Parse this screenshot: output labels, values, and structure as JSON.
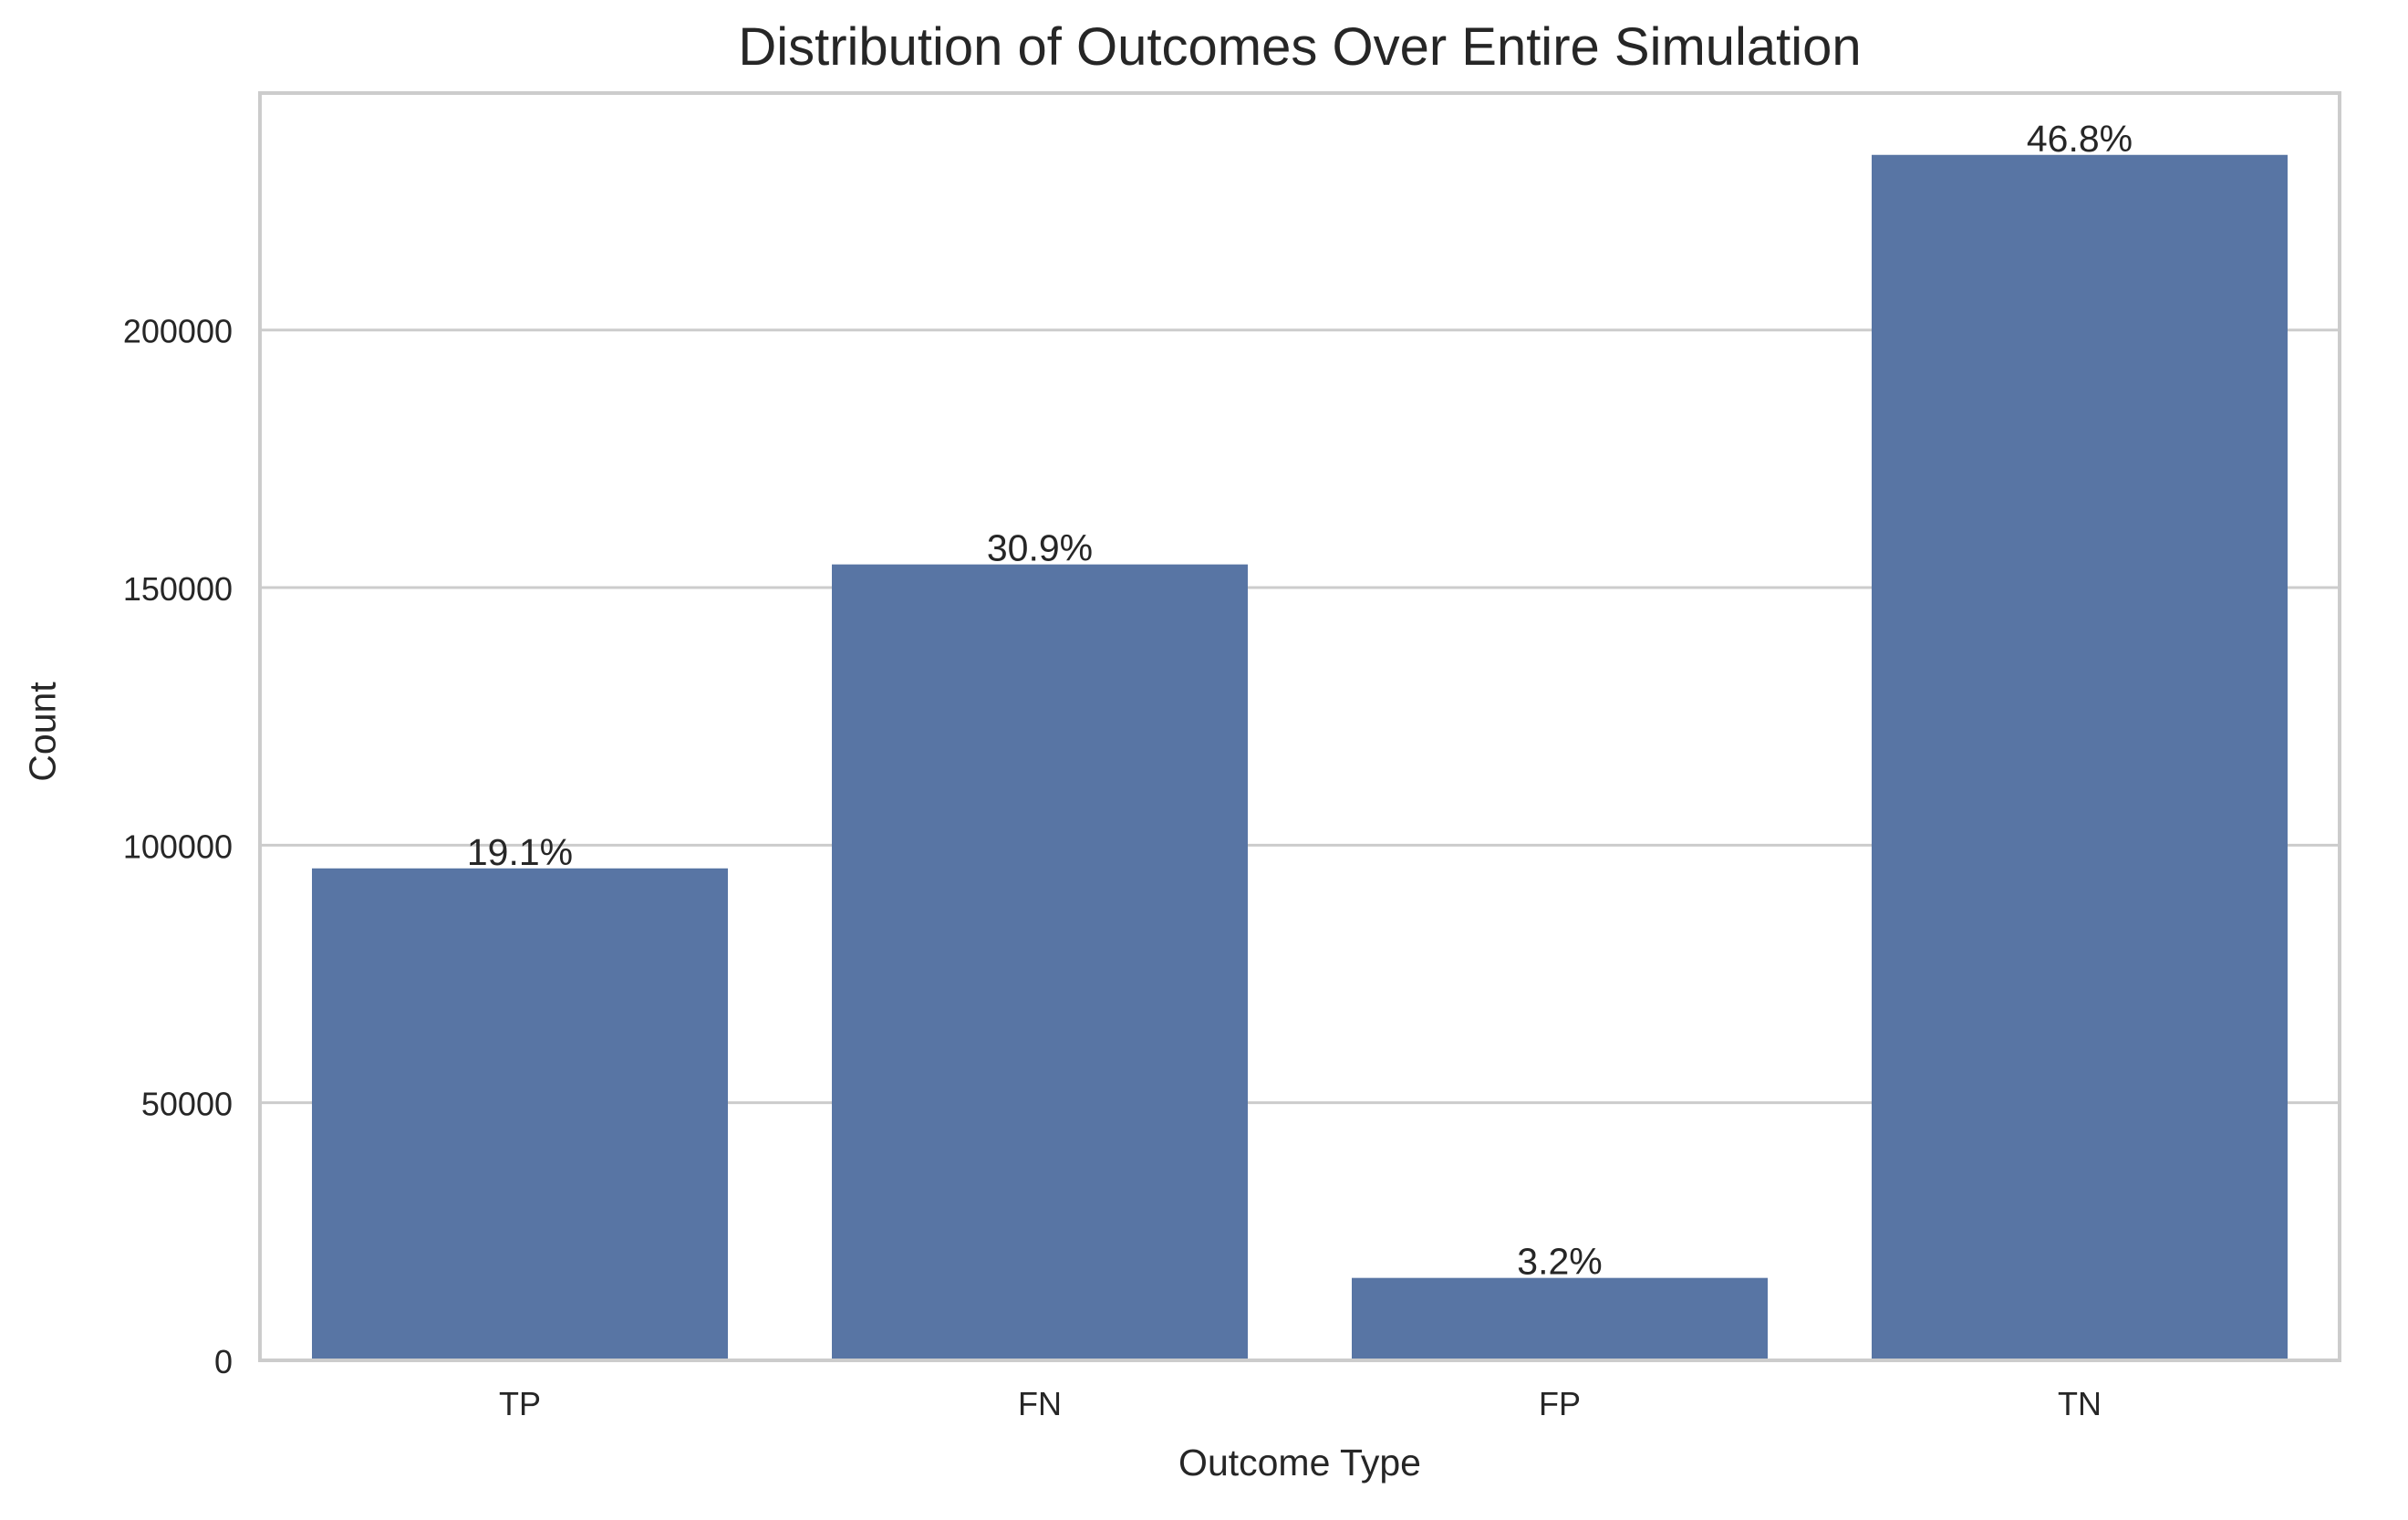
{
  "chart_data": {
    "type": "bar",
    "title": "Distribution of Outcomes Over Entire Simulation",
    "xlabel": "Outcome Type",
    "ylabel": "Count",
    "categories": [
      "TP",
      "FN",
      "FP",
      "TN"
    ],
    "values": [
      95500,
      154500,
      16000,
      234000
    ],
    "data_labels": [
      "19.1%",
      "30.9%",
      "3.2%",
      "46.8%"
    ],
    "ylim": [
      0,
      246000
    ],
    "yticks": [
      0,
      50000,
      100000,
      150000,
      200000
    ],
    "ytick_labels": [
      "0",
      "50000",
      "100000",
      "150000",
      "200000"
    ],
    "grid": "horizontal",
    "bar_color": "#5875a4",
    "grid_color": "#cccccc",
    "spine_color": "#cccccc",
    "text_color": "#262626"
  }
}
